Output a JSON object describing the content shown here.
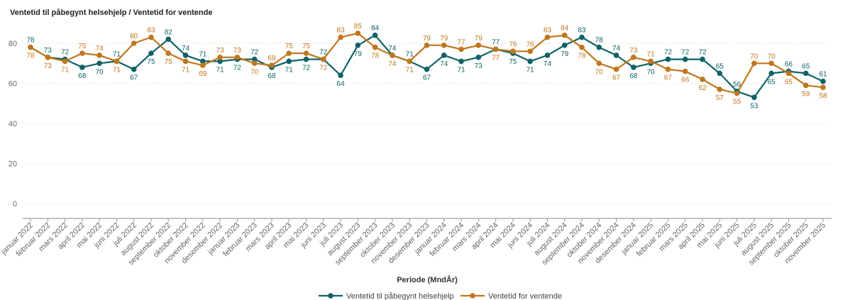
{
  "chart_data": {
    "type": "line",
    "title": "Ventetid til påbegynt helsehjelp / Ventetid for ventende",
    "xlabel": "Periode (MndÅr)",
    "ylabel": "",
    "ylim": [
      0,
      90
    ],
    "yticks": [
      0,
      20,
      40,
      60,
      80
    ],
    "grid": true,
    "legend_position": "bottom",
    "categories": [
      "januar 2022",
      "februar 2022",
      "mars 2022",
      "april 2022",
      "mai 2022",
      "juni 2022",
      "juli 2022",
      "august 2022",
      "september 2022",
      "oktober 2022",
      "november 2022",
      "desember 2022",
      "januar 2023",
      "februar 2023",
      "mars 2023",
      "april 2023",
      "mai 2023",
      "juni 2023",
      "juli 2023",
      "august 2023",
      "september 2023",
      "oktober 2023",
      "november 2023",
      "desember 2023",
      "januar 2024",
      "februar 2024",
      "mars 2024",
      "april 2024",
      "mai 2024",
      "juni 2024",
      "juli 2024",
      "august 2024",
      "september 2024",
      "oktober 2024",
      "november 2024",
      "desember 2024",
      "januar 2025",
      "februar 2025",
      "mars 2025",
      "april 2025",
      "mai 2025",
      "juni 2025",
      "juli 2025",
      "august 2025",
      "september 2025",
      "oktober 2025",
      "november 2025"
    ],
    "series": [
      {
        "name": "Ventetid til påbegynt helsehjelp",
        "color": "#0f6268",
        "values": [
          78,
          73,
          72,
          68,
          70,
          71,
          67,
          75,
          82,
          74,
          71,
          71,
          72,
          72,
          68,
          71,
          72,
          72,
          64,
          79,
          84,
          74,
          71,
          67,
          74,
          71,
          73,
          77,
          75,
          71,
          74,
          79,
          83,
          78,
          74,
          68,
          70,
          72,
          72,
          72,
          65,
          56,
          53,
          65,
          66,
          65,
          61
        ]
      },
      {
        "name": "Ventetid for ventende",
        "color": "#c0761b",
        "values": [
          78,
          73,
          71,
          75,
          74,
          71,
          80,
          83,
          75,
          71,
          69,
          73,
          73,
          70,
          69,
          75,
          75,
          72,
          83,
          85,
          78,
          74,
          71,
          79,
          79,
          77,
          79,
          77,
          76,
          76,
          83,
          84,
          78,
          70,
          67,
          73,
          71,
          67,
          66,
          62,
          57,
          55,
          70,
          70,
          65,
          59,
          58
        ]
      }
    ]
  }
}
